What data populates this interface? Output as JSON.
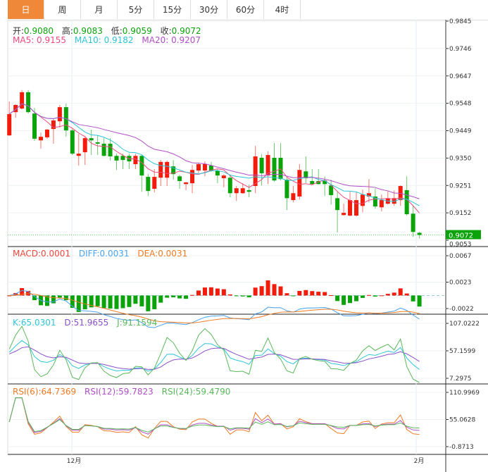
{
  "tabs": [
    "日",
    "周",
    "月",
    "5分",
    "15分",
    "30分",
    "60分",
    "4时"
  ],
  "active_tab": 0,
  "ohlc": {
    "open_label": "开:",
    "open": "0.9080",
    "high_label": "高:",
    "high": "0.9083",
    "low_label": "低:",
    "low": "0.9059",
    "close_label": "收:",
    "close": "0.9072"
  },
  "ma": {
    "ma5": "MA5: 0.9155",
    "ma10": "MA10: 0.9182",
    "ma20": "MA20: 0.9207"
  },
  "macd": {
    "macd": "MACD:0.0001",
    "diff": "DIFF:0.0031",
    "dea": "DEA:0.0031"
  },
  "kdj": {
    "k": "K:65.0301",
    "d": "D:51.9655",
    "j": "J:91.1594"
  },
  "rsi": {
    "r6": "RSI(6):64.7369",
    "r12": "RSI(12):59.7823",
    "r24": "RSI(24):59.4790"
  },
  "colors": {
    "up": "#f21c0c",
    "down": "#0aa30a",
    "ma5": "#ee4a7c",
    "ma10": "#2ec5d8",
    "ma20": "#b04fc5",
    "diff": "#4aa3f0",
    "dea": "#f07a22",
    "k": "#2ec5d8",
    "d": "#8c52c8",
    "j": "#5bb85b",
    "r6": "#f07a22",
    "r12": "#b04fc5",
    "r24": "#5bb85b",
    "active_tab": "#f0883a",
    "last_price_bg": "#0aa30a"
  },
  "chart_data": {
    "type": "candlestick",
    "title": "",
    "x_labels": [
      {
        "index": 10,
        "label": "12月"
      },
      {
        "index": 65,
        "label": "2月"
      }
    ],
    "price_axis": {
      "ticks": [
        "0.9845",
        "0.9746",
        "0.9647",
        "0.9548",
        "0.9449",
        "0.9350",
        "0.9251",
        "0.9152",
        "0.9053"
      ],
      "range": [
        0.9053,
        0.9845
      ],
      "last_price": "0.9072"
    },
    "macd_axis": {
      "ticks": [
        "0.0067",
        "0.0023",
        "-0.0022"
      ],
      "range": [
        -0.0022,
        0.0067
      ]
    },
    "kdj_axis": {
      "ticks": [
        "107.0222",
        "57.1599",
        "7.2975"
      ],
      "range": [
        7.2975,
        107.0222
      ]
    },
    "rsi_axis": {
      "ticks": [
        "110.9969",
        "55.0628",
        "-0.8713"
      ],
      "range": [
        -0.8713,
        110.9969
      ]
    },
    "candles": [
      [
        0.9432,
        0.9555,
        0.943,
        0.9509
      ],
      [
        0.9516,
        0.9545,
        0.9496,
        0.9542
      ],
      [
        0.9529,
        0.9596,
        0.9526,
        0.9588
      ],
      [
        0.9588,
        0.9596,
        0.9511,
        0.9516
      ],
      [
        0.9511,
        0.9531,
        0.9412,
        0.942
      ],
      [
        0.9414,
        0.9442,
        0.9384,
        0.9427
      ],
      [
        0.9425,
        0.9455,
        0.942,
        0.9453
      ],
      [
        0.9455,
        0.9493,
        0.9402,
        0.9486
      ],
      [
        0.9483,
        0.9542,
        0.946,
        0.9534
      ],
      [
        0.9534,
        0.9547,
        0.9427,
        0.945
      ],
      [
        0.945,
        0.9455,
        0.9361,
        0.9366
      ],
      [
        0.9358,
        0.9437,
        0.9323,
        0.9366
      ],
      [
        0.9371,
        0.9427,
        0.9325,
        0.9422
      ],
      [
        0.9422,
        0.9453,
        0.9361,
        0.9414
      ],
      [
        0.9407,
        0.9432,
        0.9361,
        0.9402
      ],
      [
        0.9402,
        0.9422,
        0.9356,
        0.9358
      ],
      [
        0.9402,
        0.9422,
        0.9341,
        0.9356
      ],
      [
        0.9358,
        0.9366,
        0.9307,
        0.9341
      ],
      [
        0.9358,
        0.9366,
        0.931,
        0.9343
      ],
      [
        0.9358,
        0.9366,
        0.931,
        0.9338
      ],
      [
        0.9328,
        0.9366,
        0.931,
        0.9358
      ],
      [
        0.9358,
        0.9361,
        0.9228,
        0.9287
      ],
      [
        0.9282,
        0.9292,
        0.9213,
        0.9231
      ],
      [
        0.9239,
        0.931,
        0.9226,
        0.9282
      ],
      [
        0.9279,
        0.9343,
        0.9249,
        0.9336
      ],
      [
        0.9279,
        0.9341,
        0.9249,
        0.9336
      ],
      [
        0.932,
        0.9343,
        0.9272,
        0.9292
      ],
      [
        0.9284,
        0.929,
        0.9239,
        0.9267
      ],
      [
        0.9256,
        0.9264,
        0.9234,
        0.9262
      ],
      [
        0.9259,
        0.9325,
        0.9223,
        0.9307
      ],
      [
        0.9305,
        0.9335,
        0.9295,
        0.9328
      ],
      [
        0.9305,
        0.9338,
        0.9284,
        0.9328
      ],
      [
        0.9323,
        0.9336,
        0.93,
        0.9305
      ],
      [
        0.9305,
        0.931,
        0.9259,
        0.9287
      ],
      [
        0.9277,
        0.9292,
        0.9244,
        0.9287
      ],
      [
        0.9279,
        0.929,
        0.9208,
        0.9223
      ],
      [
        0.9223,
        0.9249,
        0.9195,
        0.9241
      ],
      [
        0.9223,
        0.9259,
        0.9221,
        0.9241
      ],
      [
        0.9234,
        0.9254,
        0.9208,
        0.9228
      ],
      [
        0.9249,
        0.9394,
        0.9223,
        0.9356
      ],
      [
        0.9351,
        0.9364,
        0.9251,
        0.9295
      ],
      [
        0.9287,
        0.9374,
        0.9256,
        0.9361
      ],
      [
        0.9351,
        0.9404,
        0.9264,
        0.9269
      ],
      [
        0.9351,
        0.9404,
        0.9269,
        0.9274
      ],
      [
        0.9272,
        0.9282,
        0.9162,
        0.9205
      ],
      [
        0.9198,
        0.9249,
        0.919,
        0.9223
      ],
      [
        0.9211,
        0.9328,
        0.92,
        0.9307
      ],
      [
        0.9302,
        0.9356,
        0.9259,
        0.9277
      ],
      [
        0.9267,
        0.931,
        0.9254,
        0.9256
      ],
      [
        0.9267,
        0.931,
        0.9254,
        0.9256
      ],
      [
        0.9269,
        0.9284,
        0.9213,
        0.9256
      ],
      [
        0.9251,
        0.9272,
        0.9182,
        0.9216
      ],
      [
        0.9205,
        0.9228,
        0.9081,
        0.9162
      ],
      [
        0.9144,
        0.9185,
        0.9142,
        0.9152
      ],
      [
        0.9142,
        0.9228,
        0.9139,
        0.9198
      ],
      [
        0.9142,
        0.9228,
        0.9139,
        0.9198
      ],
      [
        0.9177,
        0.9236,
        0.9154,
        0.9218
      ],
      [
        0.9211,
        0.9274,
        0.919,
        0.9223
      ],
      [
        0.9211,
        0.9241,
        0.9167,
        0.9175
      ],
      [
        0.9172,
        0.9218,
        0.9157,
        0.9198
      ],
      [
        0.9185,
        0.9231,
        0.9182,
        0.9205
      ],
      [
        0.9185,
        0.9233,
        0.9177,
        0.9205
      ],
      [
        0.9198,
        0.9251,
        0.9177,
        0.9249
      ],
      [
        0.9234,
        0.9284,
        0.9142,
        0.9147
      ],
      [
        0.9149,
        0.9177,
        0.9065,
        0.9083
      ],
      [
        0.908,
        0.9083,
        0.9059,
        0.9072
      ]
    ]
  }
}
